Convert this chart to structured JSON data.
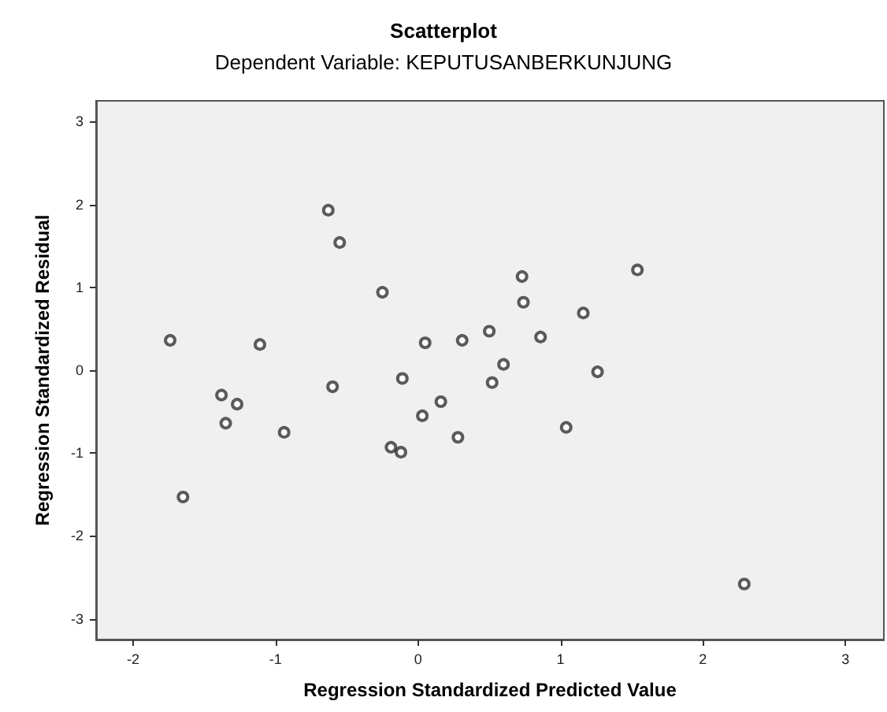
{
  "chart_data": {
    "type": "scatter",
    "title": "Scatterplot",
    "subtitle": "Dependent Variable: KEPUTUSANBERKUNJUNG",
    "xlabel": "Regression Standardized Predicted Value",
    "ylabel": "Regression Standardized Residual",
    "x": [
      -0.63,
      -0.55,
      -0.25,
      -1.74,
      -1.11,
      0.05,
      0.31,
      -0.6,
      -0.11,
      -1.38,
      -1.27,
      -1.35,
      -0.94,
      0.16,
      0.03,
      -0.19,
      -0.12,
      0.28,
      -1.65,
      0.73,
      1.54,
      0.74,
      1.16,
      0.5,
      0.86,
      0.6,
      0.52,
      1.26,
      1.04,
      2.29
    ],
    "series": [
      {
        "color": "#333333",
        "values": [
          1.93,
          1.54,
          0.94,
          0.36,
          0.31,
          0.33,
          0.36,
          -0.2,
          -0.1,
          -0.3,
          -0.41,
          -0.64,
          -0.75,
          -0.38,
          -0.55,
          -0.93,
          -0.99,
          -0.81,
          -1.53,
          1.13,
          1.21,
          0.82,
          0.69,
          0.47,
          0.4,
          0.07,
          -0.15,
          -0.02,
          -0.69,
          -2.58
        ]
      }
    ],
    "xlim": [
      -2.26,
      3.27
    ],
    "xticks": [
      -2,
      -1,
      0,
      1,
      2,
      3
    ],
    "ylim": [
      -3.25,
      3.25
    ],
    "yticks": [
      -3,
      -2,
      -1,
      0,
      1,
      2,
      3
    ],
    "grid": false,
    "marker": "circle"
  }
}
